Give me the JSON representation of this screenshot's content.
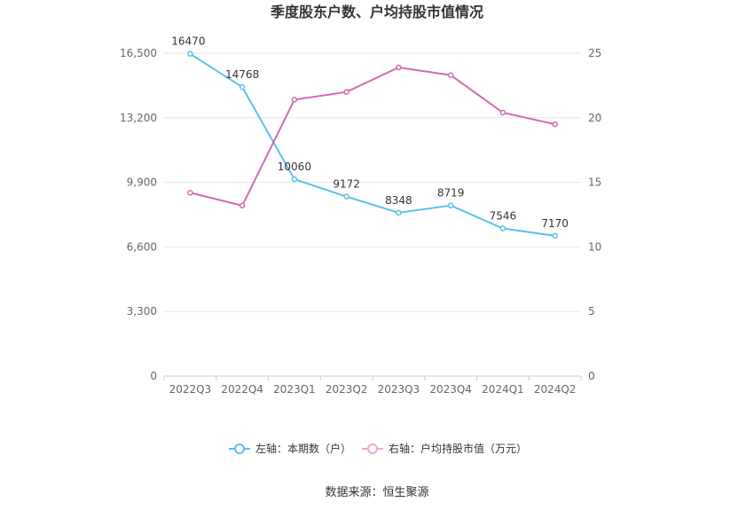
{
  "chart_data": {
    "type": "line",
    "title": "季度股东户数、户均持股市值情况",
    "categories": [
      "2022Q3",
      "2022Q4",
      "2023Q1",
      "2023Q2",
      "2023Q3",
      "2023Q4",
      "2024Q1",
      "2024Q2"
    ],
    "series": [
      {
        "name": "左轴：本期数（户）",
        "axis": "left",
        "color": "#5bc0eb",
        "values": [
          16470,
          14768,
          10060,
          9172,
          8348,
          8719,
          7546,
          7170
        ],
        "labels": [
          "16470",
          "14768",
          "10060",
          "9172",
          "8348",
          "8719",
          "7546",
          "7170"
        ]
      },
      {
        "name": "右轴：户均持股市值（万元）",
        "axis": "right",
        "color": "#d36aae",
        "values": [
          14.2,
          13.2,
          21.4,
          22.0,
          23.9,
          23.3,
          20.4,
          19.5
        ]
      }
    ],
    "y_left": {
      "min": 0,
      "max": 16500,
      "ticks": [
        0,
        3300,
        6600,
        9900,
        13200,
        16500
      ],
      "tick_labels": [
        "0",
        "3,300",
        "6,600",
        "9,900",
        "13,200",
        "16,500"
      ]
    },
    "y_right": {
      "min": 0,
      "max": 25,
      "ticks": [
        0,
        5,
        10,
        15,
        20,
        25
      ],
      "tick_labels": [
        "0",
        "5",
        "10",
        "15",
        "20",
        "25"
      ]
    },
    "grid": true,
    "legend_position": "bottom-center"
  },
  "source": "数据来源：恒生聚源",
  "colors": {
    "grid": "#e6e6e6",
    "axis": "#cccccc",
    "legend_right_muted": "#e8a9cf"
  }
}
